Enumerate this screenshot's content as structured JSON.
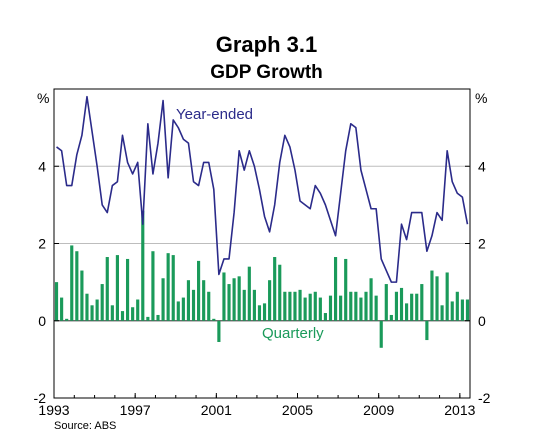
{
  "header": {
    "title": "Graph 3.1",
    "subtitle": "GDP Growth"
  },
  "source": "Source: ABS",
  "chart_data": {
    "type": "bar+line",
    "title": "Graph 3.1",
    "subtitle": "GDP Growth",
    "ylabel_left": "%",
    "ylabel_right": "%",
    "ylim": [
      -2,
      6
    ],
    "yticks": [
      -2,
      0,
      2,
      4
    ],
    "xlim": [
      1993.0,
      2013.5
    ],
    "xticks": [
      "1993",
      "1997",
      "2001",
      "2005",
      "2009",
      "2013"
    ],
    "xtick_values": [
      1993,
      1997,
      2001,
      2005,
      2009,
      2013
    ],
    "grid": true,
    "line_color": "#2b2b8a",
    "bar_color": "#1a9a5a",
    "series": [
      {
        "name": "Year-ended",
        "kind": "line",
        "x_start": 1993.0,
        "x_step": 0.25,
        "values": [
          4.5,
          4.4,
          3.5,
          3.5,
          4.3,
          4.8,
          5.8,
          4.9,
          4.0,
          3.0,
          2.8,
          3.5,
          3.6,
          4.8,
          4.1,
          3.8,
          4.1,
          2.5,
          5.1,
          3.8,
          4.6,
          5.7,
          3.7,
          5.2,
          5.0,
          4.7,
          4.6,
          3.6,
          3.5,
          4.1,
          4.1,
          3.4,
          1.2,
          1.6,
          1.6,
          2.8,
          4.4,
          3.9,
          4.4,
          4.0,
          3.4,
          2.7,
          2.3,
          3.0,
          4.1,
          4.8,
          4.5,
          3.9,
          3.1,
          3.0,
          2.9,
          3.5,
          3.3,
          3.0,
          2.6,
          2.2,
          3.3,
          4.4,
          5.1,
          5.0,
          3.9,
          3.4,
          2.9,
          2.9,
          1.6,
          1.3,
          1.0,
          1.0,
          2.5,
          2.1,
          2.8,
          2.8,
          2.8,
          1.8,
          2.2,
          2.8,
          2.6,
          4.4,
          3.6,
          3.3,
          3.2,
          2.5
        ]
      },
      {
        "name": "Quarterly",
        "kind": "bar",
        "x_start": 1993.0,
        "x_step": 0.25,
        "values": [
          1.0,
          0.6,
          0.05,
          1.95,
          1.8,
          1.3,
          0.7,
          0.4,
          0.55,
          0.95,
          1.65,
          0.4,
          1.7,
          0.25,
          1.6,
          0.35,
          0.55,
          2.85,
          0.1,
          1.8,
          0.15,
          1.1,
          1.75,
          1.7,
          0.5,
          0.6,
          1.05,
          0.8,
          1.55,
          1.05,
          0.75,
          0.05,
          -0.55,
          1.25,
          0.95,
          1.1,
          1.15,
          0.8,
          1.4,
          0.8,
          0.4,
          0.45,
          1.05,
          1.65,
          1.45,
          0.75,
          0.75,
          0.75,
          0.8,
          0.6,
          0.7,
          0.75,
          0.6,
          0.2,
          0.65,
          1.65,
          0.65,
          1.6,
          0.75,
          0.75,
          0.6,
          0.75,
          1.1,
          0.65,
          -0.7,
          0.95,
          0.15,
          0.75,
          0.85,
          0.45,
          0.7,
          0.7,
          0.95,
          -0.5,
          1.3,
          1.15,
          0.4,
          1.25,
          0.5,
          0.75,
          0.55,
          0.55
        ]
      }
    ],
    "annotations": [
      "Year-ended",
      "Quarterly"
    ]
  }
}
